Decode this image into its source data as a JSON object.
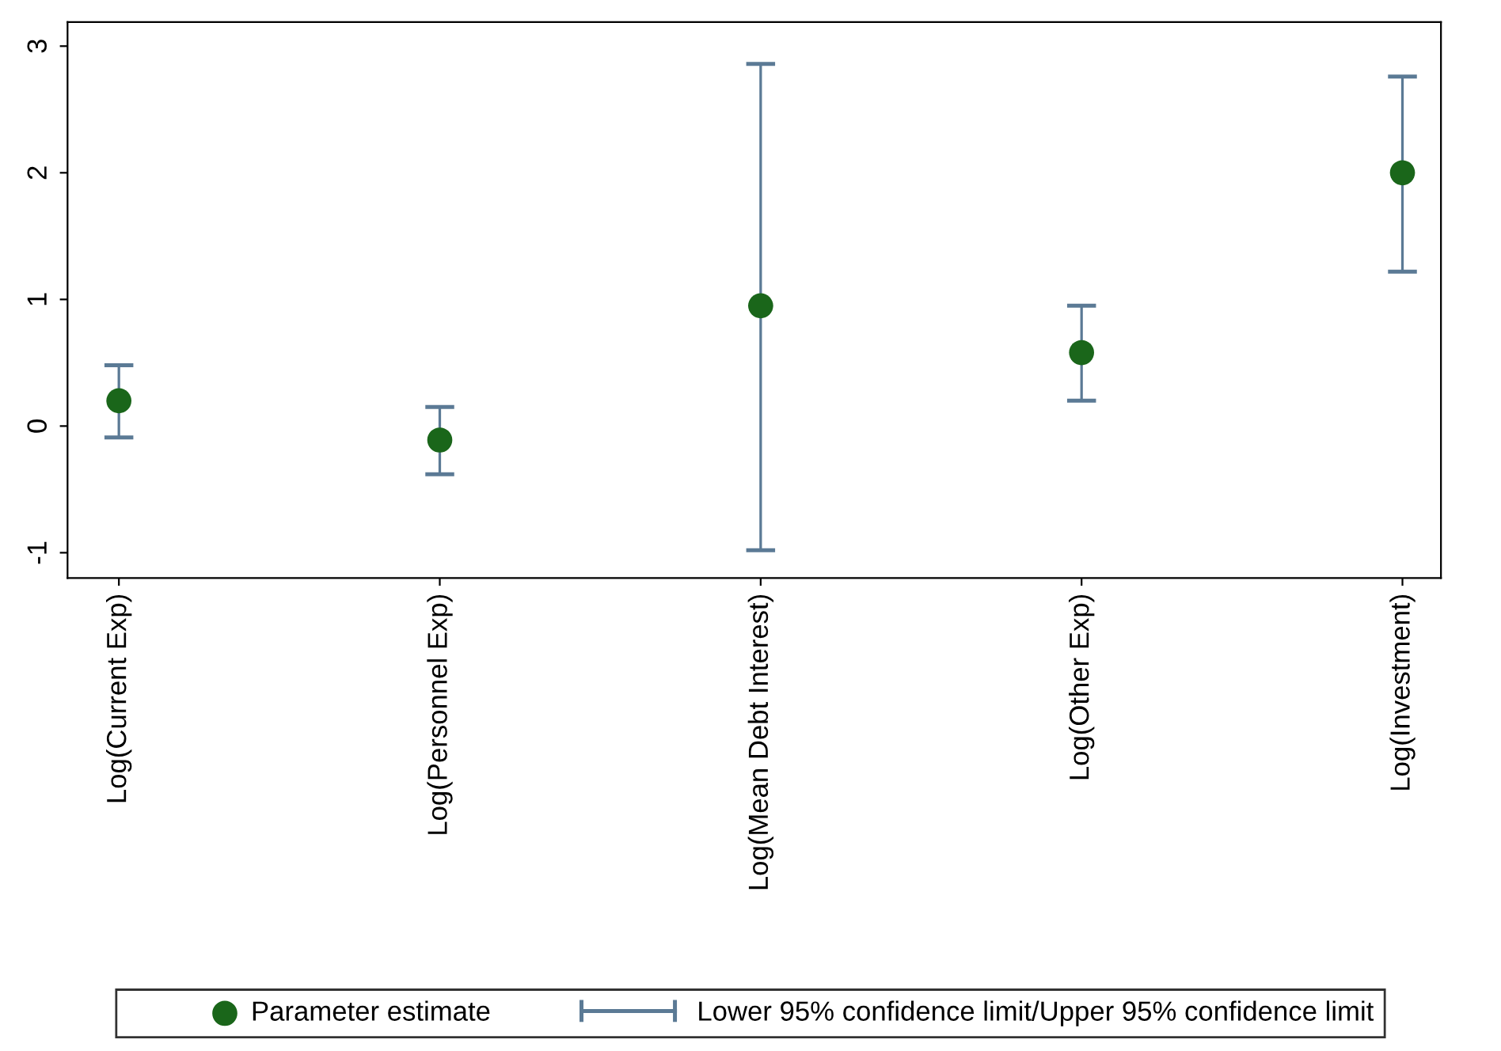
{
  "chart_data": {
    "type": "scatter",
    "categories": [
      "Log(Current Exp)",
      "Log(Personnel Exp)",
      "Log(Mean Debt Interest)",
      "Log(Other Exp)",
      "Log(Investment)"
    ],
    "ylim": [
      -1.2,
      3.19
    ],
    "yticks": [
      -1,
      0,
      1,
      2,
      3
    ],
    "legend": "bottom",
    "marker": "circle",
    "series": [
      {
        "name": "Parameter estimate",
        "color": "#1a661a",
        "values": [
          0.2,
          -0.11,
          0.95,
          0.58,
          2.0
        ]
      },
      {
        "name": "Lower 95% confidence limit/Upper 95% confidence limit",
        "type": "bar",
        "color": "#5b7a95",
        "base": [
          -0.09,
          -0.38,
          -0.98,
          0.2,
          1.22
        ],
        "values": [
          0.57,
          0.53,
          3.84,
          0.75,
          1.54
        ]
      }
    ]
  }
}
